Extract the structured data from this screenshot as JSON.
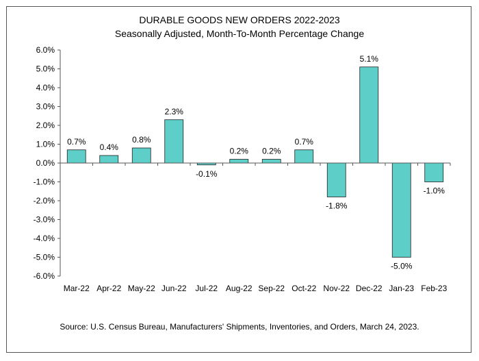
{
  "chart_data": {
    "type": "bar",
    "title": "DURABLE GOODS NEW ORDERS 2022-2023",
    "subtitle": "Seasonally Adjusted,  Month-To-Month Percentage Change",
    "categories": [
      "Mar-22",
      "Apr-22",
      "May-22",
      "Jun-22",
      "Jul-22",
      "Aug-22",
      "Sep-22",
      "Oct-22",
      "Nov-22",
      "Dec-22",
      "Jan-23",
      "Feb-23"
    ],
    "values": [
      0.7,
      0.4,
      0.8,
      2.3,
      -0.1,
      0.2,
      0.2,
      0.7,
      -1.8,
      5.1,
      -5.0,
      -1.0
    ],
    "data_labels": [
      "0.7%",
      "0.4%",
      "0.8%",
      "2.3%",
      "-0.1%",
      "0.2%",
      "0.2%",
      "0.7%",
      "-1.8%",
      "5.1%",
      "-5.0%",
      "-1.0%"
    ],
    "yticks": [
      "6.0%",
      "5.0%",
      "4.0%",
      "3.0%",
      "2.0%",
      "1.0%",
      "0.0%",
      "-1.0%",
      "-2.0%",
      "-3.0%",
      "-4.0%",
      "-5.0%",
      "-6.0%"
    ],
    "ylim": [
      -6,
      6
    ],
    "xlabel": "",
    "ylabel": "",
    "bar_color": "#5ecfc8",
    "bar_edge_color": "#1f1f1f",
    "source": "Source: U.S. Census Bureau, Manufacturers' Shipments, Inventories, and Orders, March 24, 2023."
  }
}
